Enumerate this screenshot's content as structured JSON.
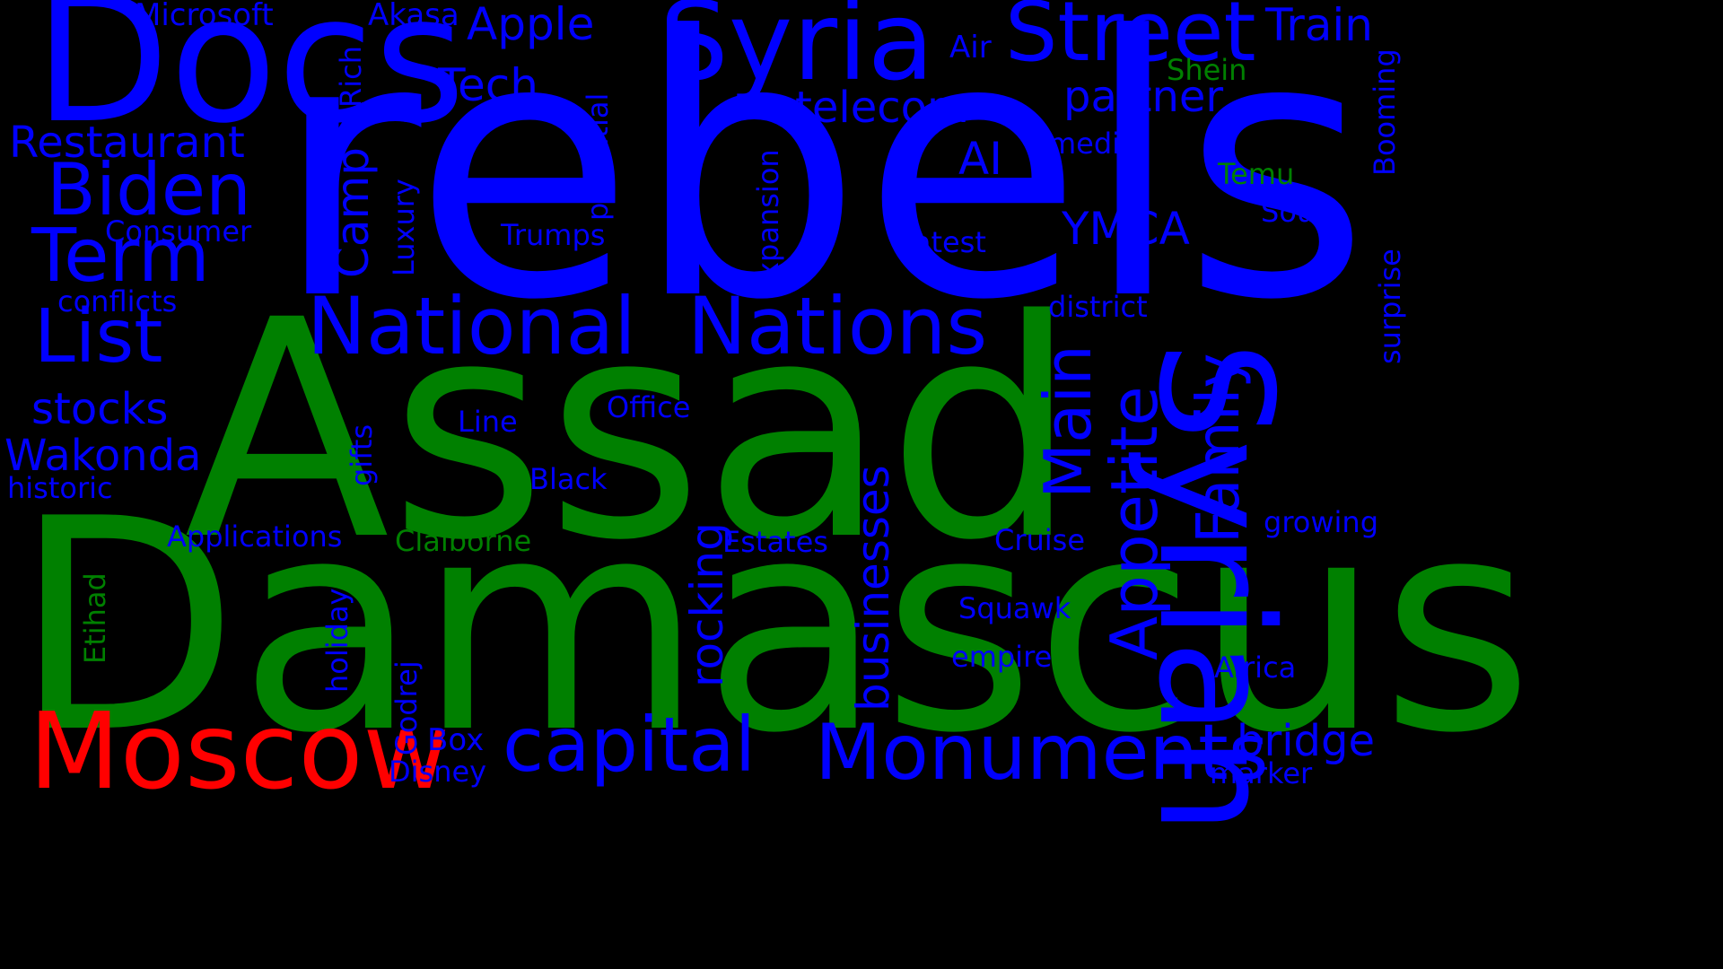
{
  "colors": {
    "background": "#000000",
    "blue": "#0000ff",
    "green": "#008000",
    "red": "#ff0000"
  },
  "words": {
    "rebels": "rebels",
    "assad": "Assad",
    "damascus": "Damascus",
    "docs": "Docs",
    "syria": "Syria",
    "street": "Street",
    "syrian": "Syrian",
    "national": "National",
    "nations": "Nations",
    "moscow": "Moscow",
    "monuments": "Monuments",
    "capital": "capital",
    "biden": "Biden",
    "term": "Term",
    "list": "List",
    "family": "Family",
    "appetite": "Appetite",
    "main": "Main",
    "microsoft": "Microsoft",
    "akasa": "Akasa",
    "apple": "Apple",
    "train": "Train",
    "air": "Air",
    "tech": "Tech",
    "rich": "Rich",
    "potential": "potential",
    "shein": "Shein",
    "booming": "Booming",
    "telecom": "telecom",
    "partner": "partner",
    "restaurant": "Restaurant",
    "media": "media",
    "ai": "AI",
    "temu": "Temu",
    "camp": "Camp",
    "luxury": "Luxury",
    "expansion": "expansion",
    "consumer": "Consumer",
    "trumps": "Trumps",
    "ymca": "YMCA",
    "south": "South",
    "latest": "Latest",
    "conflicts": "conflicts",
    "district": "district",
    "surprise": "surprise",
    "stocks": "stocks",
    "gifts": "gifts",
    "line": "Line",
    "office": "Office",
    "wakonda": "Wakonda",
    "historic": "historic",
    "black": "Black",
    "growing": "growing",
    "applications": "Applications",
    "claiborne": "Claiborne",
    "rocking": "rocking",
    "estates": "Estates",
    "businesses": "businesses",
    "cruise": "Cruise",
    "etihad": "Etihad",
    "holiday": "holiday",
    "squawk": "Squawk",
    "empire": "empire",
    "africa": "Africa",
    "godrej": "Godrej",
    "box": "Box",
    "disney": "Disney",
    "bridge": "bridge",
    "marker": "marker"
  }
}
